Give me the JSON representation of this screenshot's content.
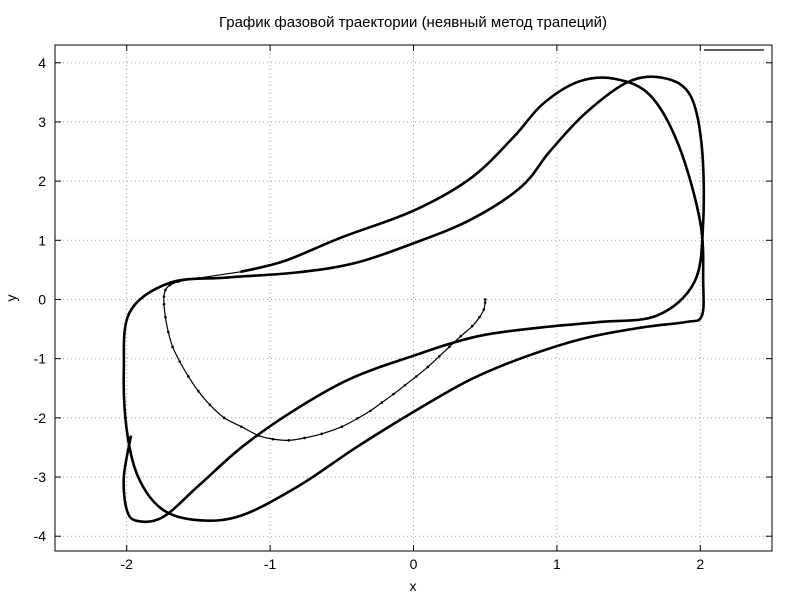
{
  "chart_data": {
    "type": "line",
    "title": "График фазовой траектории (неявный метод трапеций)",
    "xlabel": "x",
    "ylabel": "y",
    "xlim": [
      -2.5,
      2.5
    ],
    "ylim": [
      -4.25,
      4.3
    ],
    "xticks": [
      -2,
      -1,
      0,
      1,
      2
    ],
    "yticks": [
      -4,
      -3,
      -2,
      -1,
      0,
      1,
      2,
      3,
      4
    ],
    "grid": true,
    "legend_position": "top-right",
    "series": [
      {
        "name": "",
        "color": "#000000",
        "description_type": "phase-trajectory",
        "x": [
          0.5,
          0.5,
          0.49,
          0.46,
          0.41,
          0.33,
          0.25,
          0.18,
          0.1,
          0.02,
          -0.06,
          -0.14,
          -0.22,
          -0.3,
          -0.39,
          -0.5,
          -0.64,
          -0.76,
          -0.87,
          -0.98,
          -1.08,
          -1.2,
          -1.32,
          -1.42,
          -1.5,
          -1.57,
          -1.63,
          -1.68,
          -1.71,
          -1.73,
          -1.74,
          -1.74,
          -1.73,
          -1.7,
          -1.64,
          -1.5,
          -1.2,
          -0.9,
          -0.5,
          0.0,
          0.4,
          0.7,
          0.9,
          1.15,
          1.4,
          1.65,
          1.85,
          2.0,
          2.02,
          2.01,
          1.9,
          1.6,
          1.2,
          0.8,
          0.4,
          0.0,
          -0.4,
          -0.8,
          -1.2,
          -1.5,
          -1.75,
          -1.92,
          -2.0,
          -2.02,
          -1.98,
          -1.7,
          -1.3,
          -0.8,
          -0.4,
          0.0,
          0.4,
          0.75,
          0.95,
          1.2,
          1.5,
          1.75,
          1.93,
          2.01,
          2.02,
          1.96,
          1.7,
          1.3,
          0.9,
          0.45,
          0.0,
          -0.45,
          -0.85,
          -1.2,
          -1.5,
          -1.75,
          -1.93,
          -2.0,
          -2.02,
          -1.97
        ],
        "y": [
          0.0,
          -0.05,
          -0.17,
          -0.3,
          -0.45,
          -0.62,
          -0.8,
          -0.96,
          -1.14,
          -1.3,
          -1.45,
          -1.6,
          -1.74,
          -1.88,
          -2.01,
          -2.15,
          -2.27,
          -2.34,
          -2.38,
          -2.36,
          -2.3,
          -2.15,
          -2.0,
          -1.78,
          -1.55,
          -1.3,
          -1.05,
          -0.8,
          -0.55,
          -0.3,
          -0.08,
          0.05,
          0.16,
          0.24,
          0.3,
          0.36,
          0.47,
          0.65,
          1.05,
          1.5,
          2.05,
          2.75,
          3.3,
          3.68,
          3.73,
          3.45,
          2.6,
          1.3,
          0.3,
          -0.28,
          -0.38,
          -0.47,
          -0.65,
          -0.95,
          -1.35,
          -1.9,
          -2.5,
          -3.15,
          -3.65,
          -3.73,
          -3.55,
          -3.0,
          -2.2,
          -1.2,
          -0.22,
          0.28,
          0.37,
          0.46,
          0.62,
          0.95,
          1.35,
          1.9,
          2.5,
          3.15,
          3.68,
          3.74,
          3.45,
          2.6,
          1.3,
          0.3,
          -0.27,
          -0.38,
          -0.47,
          -0.62,
          -0.95,
          -1.35,
          -1.9,
          -2.5,
          -3.15,
          -3.68,
          -3.74,
          -3.55,
          -3.0,
          -2.3
        ]
      }
    ]
  }
}
